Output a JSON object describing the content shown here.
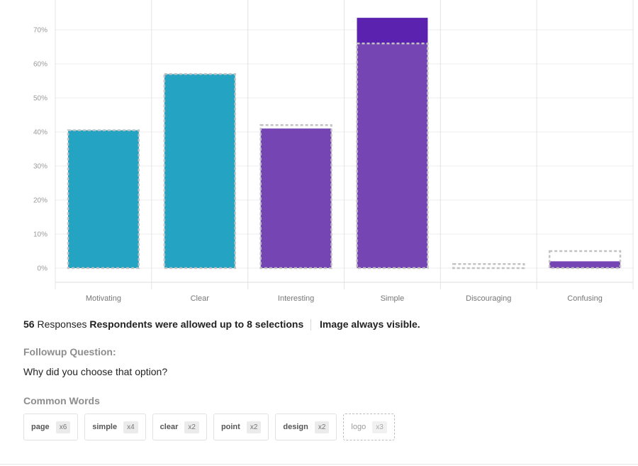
{
  "chart_data": {
    "type": "bar",
    "categories": [
      "Motivating",
      "Clear",
      "Interesting",
      "Simple",
      "Discouraging",
      "Confusing"
    ],
    "values": [
      40.5,
      57,
      41,
      73.5,
      0,
      2
    ],
    "comparison_values": [
      40.5,
      57,
      42,
      66,
      1.2,
      5
    ],
    "bar_colors": [
      "#25a3c2",
      "#25a3c2",
      "#7545b3",
      "#7545b3",
      "#7545b3",
      "#7545b3"
    ],
    "overflow_color": "#5a22ae",
    "comparison_style": "dashed outline",
    "ylim": [
      -6,
      85
    ],
    "yticks": [
      0,
      10,
      20,
      30,
      40,
      50,
      60,
      70
    ],
    "ytick_labels": [
      "0%",
      "10%",
      "20%",
      "30%",
      "40%",
      "50%",
      "60%",
      "70%"
    ],
    "grid": true,
    "xlabel": "",
    "ylabel": "",
    "title": ""
  },
  "stats": {
    "count": "56",
    "responses_label": "Responses",
    "selections": "Respondents were allowed up to 8 selections",
    "visibility": "Image always visible."
  },
  "followup": {
    "title": "Followup Question:",
    "question": "Why did you choose that option?"
  },
  "common_words": {
    "title": "Common Words",
    "items": [
      {
        "word": "page",
        "count": "x6",
        "style": "solid"
      },
      {
        "word": "simple",
        "count": "x4",
        "style": "solid"
      },
      {
        "word": "clear",
        "count": "x2",
        "style": "solid"
      },
      {
        "word": "point",
        "count": "x2",
        "style": "solid"
      },
      {
        "word": "design",
        "count": "x2",
        "style": "solid"
      },
      {
        "word": "logo",
        "count": "x3",
        "style": "dashed"
      }
    ]
  }
}
